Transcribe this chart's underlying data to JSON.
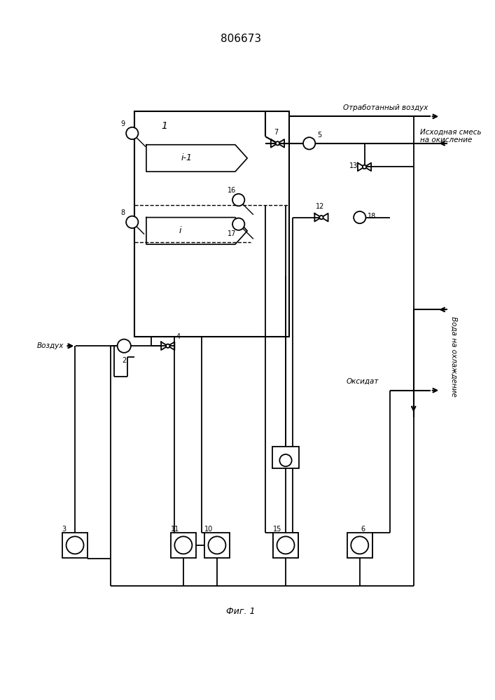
{
  "title": "806673",
  "fig_caption": "Фиг. 1",
  "bg_color": "#ffffff",
  "line_color": "#000000",
  "labels": {
    "otrabotanny_vozdukh": "Отработанный воздух",
    "iskhodnaya_smes": "Исходная смесь\nна окисление",
    "voda_na_okhlazhdenie": "Вода на охлаждение",
    "oksidat": "Оксидат",
    "vozdukh": "Воздух"
  },
  "component_labels": {
    "1": "1",
    "2": "2",
    "3": "3",
    "4": "4",
    "5": "5",
    "6": "6",
    "7": "7",
    "8": "8",
    "9": "9",
    "10": "10",
    "11": "11",
    "12": "12",
    "13": "13",
    "15": "15",
    "16": "16",
    "17": "17",
    "18": "18",
    "i_label": "i",
    "i1_label": "i-1"
  }
}
